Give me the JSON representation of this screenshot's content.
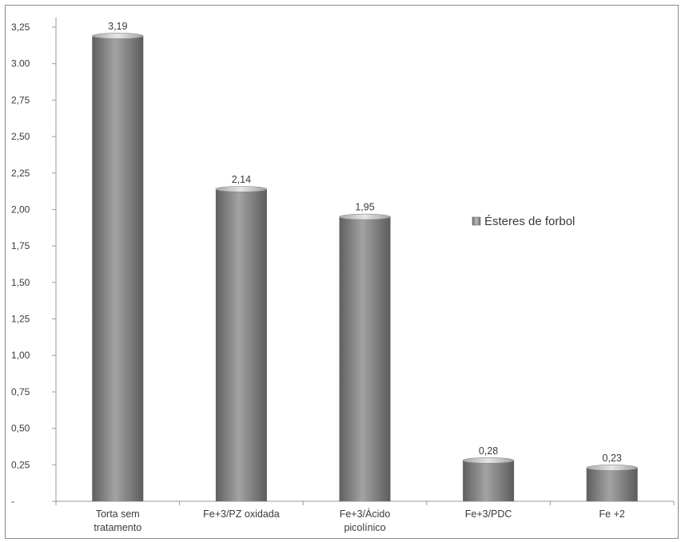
{
  "chart_data": {
    "type": "bar",
    "categories": [
      [
        "Torta sem",
        "tratamento"
      ],
      [
        "Fe+3/PZ oxidada"
      ],
      [
        "Fe+3/Ácido",
        "picolínico"
      ],
      [
        "Fe+3/PDC"
      ],
      [
        "Fe +2"
      ]
    ],
    "series": [
      {
        "name": "Ésteres de forbol",
        "values": [
          3.19,
          2.14,
          1.95,
          0.28,
          0.23
        ]
      }
    ],
    "data_labels": [
      "3,19",
      "2,14",
      "1,95",
      "0,28",
      "0,23"
    ],
    "y_ticks": [
      "-",
      "0,25",
      "0,50",
      "0,75",
      "1,00",
      "1,25",
      "1,50",
      "1,75",
      "2,00",
      "2,25",
      "2,50",
      "2,75",
      "3.00",
      "3,25"
    ],
    "ylim": [
      0,
      3.25
    ],
    "ystep": 0.25,
    "grid": false,
    "legend_position": "right",
    "colors": {
      "bar": "#8c8c8c",
      "bar_dark": "#5f5f5f",
      "bar_light": "#d2d2d2",
      "axis": "#9a9a9a",
      "border": "#8a8a8a"
    }
  }
}
